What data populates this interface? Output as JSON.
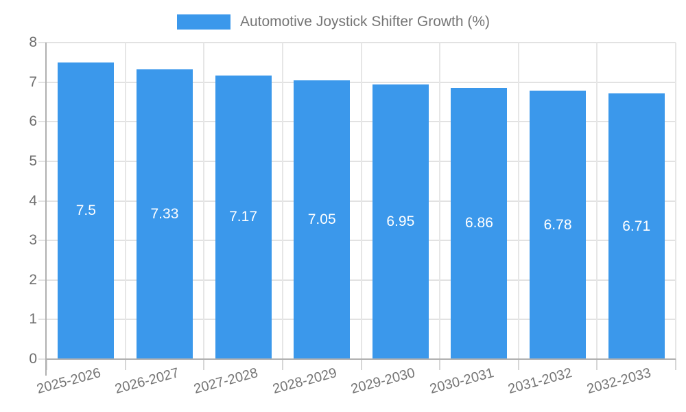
{
  "chart_data": {
    "type": "bar",
    "title": "",
    "legend": {
      "position": "top",
      "label": "Automotive Joystick Shifter Growth (%)"
    },
    "categories": [
      "2025-2026",
      "2026-2027",
      "2027-2028",
      "2028-2029",
      "2029-2030",
      "2030-2031",
      "2031-2032",
      "2032-2033"
    ],
    "series": [
      {
        "name": "Automotive Joystick Shifter Growth (%)",
        "values": [
          7.5,
          7.33,
          7.17,
          7.05,
          6.95,
          6.86,
          6.78,
          6.71
        ],
        "value_labels": [
          "7.5",
          "7.33",
          "7.17",
          "7.05",
          "6.95",
          "6.86",
          "6.78",
          "6.71"
        ],
        "color": "#3B98EB"
      }
    ],
    "xlabel": "",
    "ylabel": "",
    "ylim": [
      0,
      8
    ],
    "y_ticks": [
      0,
      1,
      2,
      3,
      4,
      5,
      6,
      7,
      8
    ],
    "grid": true,
    "bar_label_color": "#ffffff"
  },
  "colors": {
    "bar": "#3B98EB",
    "grid_line": "#e4e4e4",
    "axis_line": "#b0b0b0",
    "axis_text": "#757575",
    "bar_label": "#ffffff",
    "background": "#ffffff"
  }
}
